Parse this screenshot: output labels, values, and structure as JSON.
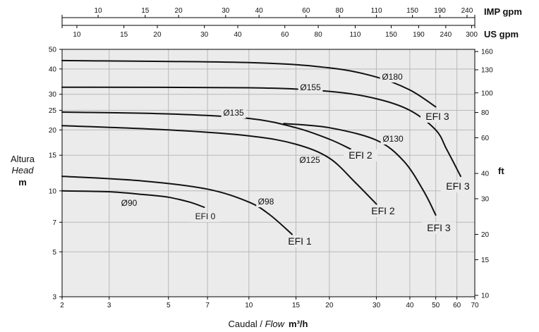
{
  "chart_data": {
    "type": "line",
    "x_scale": "log",
    "y_scale": "log",
    "xlim": [
      2,
      70
    ],
    "ylim": [
      3,
      50
    ],
    "x_ticks": [
      "2",
      "3",
      "5",
      "7",
      "10",
      "15",
      "20",
      "30",
      "40",
      "50",
      "60",
      "70"
    ],
    "y_ticks": [
      "3",
      "5",
      "7",
      "10",
      "15",
      "20",
      "25",
      "30",
      "40",
      "50"
    ],
    "xlabel_main": "Caudal / ",
    "xlabel_italic": "Flow",
    "xlabel_unit": "m³/h",
    "ylabel_main": "Altura",
    "ylabel_italic": "Head",
    "ylabel_unit": "m",
    "ft_ticks": [
      "10",
      "15",
      "20",
      "30",
      "40",
      "60",
      "80",
      "100",
      "130",
      "160"
    ],
    "ft_label": "ft",
    "us_ticks": [
      "10",
      "15",
      "20",
      "30",
      "40",
      "60",
      "80",
      "110",
      "150",
      "190",
      "240",
      "300"
    ],
    "us_label": "US gpm",
    "imp_ticks": [
      "10",
      "15",
      "20",
      "30",
      "40",
      "60",
      "80",
      "110",
      "150",
      "190",
      "240"
    ],
    "imp_label": "IMP gpm",
    "grid": true,
    "series": [
      {
        "name": "Ø90",
        "x": [
          2,
          3,
          4,
          5,
          6,
          6.8
        ],
        "y": [
          10,
          9.9,
          9.6,
          9.3,
          8.8,
          8.3
        ]
      },
      {
        "name": "Ø98",
        "x": [
          2,
          4,
          7,
          10,
          12,
          14.5
        ],
        "y": [
          11.8,
          11.2,
          10.2,
          8.8,
          7.6,
          6.1
        ]
      },
      {
        "name": "Ø125",
        "x": [
          2,
          5,
          10,
          15,
          20,
          25,
          30
        ],
        "y": [
          21,
          20,
          18.7,
          17,
          14.5,
          11,
          8.6
        ]
      },
      {
        "name": "Ø135",
        "x": [
          2,
          5,
          10,
          15,
          20,
          24
        ],
        "y": [
          24.5,
          24,
          22.8,
          20.5,
          18,
          16.1
        ]
      },
      {
        "name": "Ø130",
        "x": [
          13.5,
          20,
          30,
          38,
          45,
          50
        ],
        "y": [
          21.5,
          20.5,
          17.8,
          14,
          10,
          7.6
        ]
      },
      {
        "name": "Ø155",
        "x": [
          2,
          10,
          20,
          30,
          40,
          50,
          55,
          62
        ],
        "y": [
          32.5,
          32.3,
          31,
          28.5,
          25,
          20,
          16,
          11.8
        ]
      },
      {
        "name": "Ø180",
        "x": [
          2,
          10,
          20,
          30,
          40,
          50
        ],
        "y": [
          44,
          43,
          40.5,
          36.5,
          31.5,
          26
        ]
      }
    ],
    "annotations": {
      "d90": "Ø90",
      "d98": "Ø98",
      "d125": "Ø125",
      "d135": "Ø135",
      "d130": "Ø130",
      "d155": "Ø155",
      "d180": "Ø180",
      "efi0": "EFI 0",
      "efi1": "EFI 1",
      "efi2a": "EFI 2",
      "efi2b": "EFI 2",
      "efi3a": "EFI 3",
      "efi3b": "EFI 3",
      "efi3c": "EFI 3"
    }
  }
}
